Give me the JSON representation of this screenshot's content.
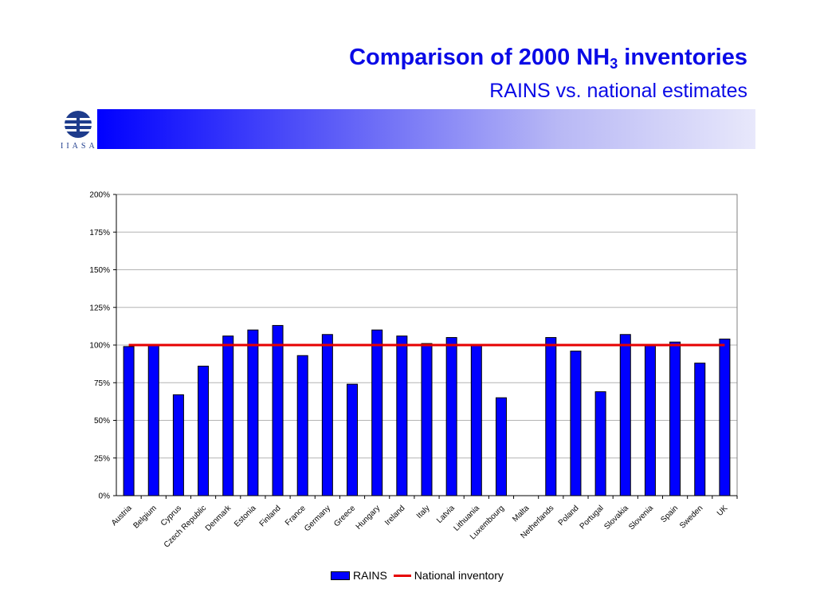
{
  "header": {
    "title_main": "Comparison of 2000 NH",
    "title_sub": "3",
    "title_end": " inventories",
    "subtitle": "RAINS vs. national estimates",
    "logo_text": "IIASA"
  },
  "colors": {
    "title": "#0a0ae6",
    "bar": "#0000ff",
    "reference_line": "#e60000"
  },
  "chart_data": {
    "type": "bar",
    "categories": [
      "Austria",
      "Belgium",
      "Cyprus",
      "Czech Republic",
      "Denmark",
      "Estonia",
      "Finland",
      "France",
      "Germany",
      "Greece",
      "Hungary",
      "Ireland",
      "Italy",
      "Latvia",
      "Lithuania",
      "Luxembourg",
      "Malta",
      "Netherlands",
      "Poland",
      "Portugal",
      "Slovakia",
      "Slovenia",
      "Spain",
      "Sweden",
      "UK"
    ],
    "series": [
      {
        "name": "RAINS",
        "values": [
          99,
          100,
          67,
          86,
          106,
          110,
          113,
          93,
          107,
          74,
          110,
          106,
          101,
          105,
          100,
          65,
          null,
          105,
          96,
          69,
          107,
          100,
          102,
          88,
          104
        ]
      },
      {
        "name": "National inventory",
        "type": "line",
        "values": [
          100,
          100,
          100,
          100,
          100,
          100,
          100,
          100,
          100,
          100,
          100,
          100,
          100,
          100,
          100,
          100,
          100,
          100,
          100,
          100,
          100,
          100,
          100,
          100,
          100
        ]
      }
    ],
    "yticks": [
      "0%",
      "25%",
      "50%",
      "75%",
      "100%",
      "125%",
      "150%",
      "175%",
      "200%"
    ],
    "ylim": [
      0,
      200
    ],
    "ylabel_unit": "%",
    "grid": true,
    "legend_position": "bottom"
  }
}
